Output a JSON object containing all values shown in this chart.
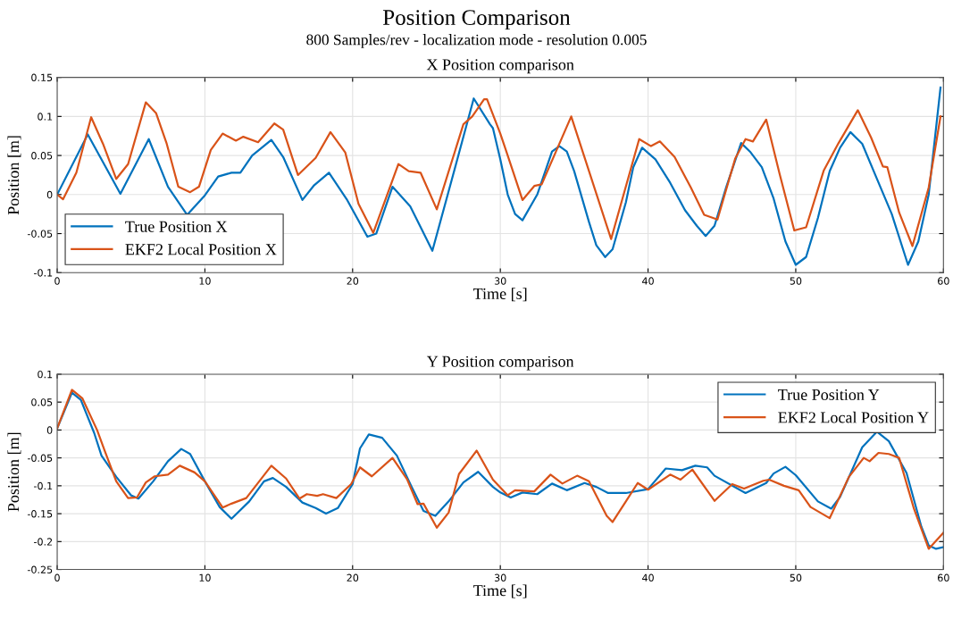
{
  "chart_data": [
    {
      "type": "line",
      "title": "X Position comparison",
      "xlabel": "Time [s]",
      "ylabel": "Position [m]",
      "annotations": [
        "Position Comparison",
        "800 Samples/rev - localization mode - resolution 0.005"
      ],
      "xlim": [
        0,
        60
      ],
      "xticks": [
        0,
        10,
        20,
        30,
        40,
        50,
        60
      ],
      "ylim": [
        -0.1,
        0.15
      ],
      "yticks": [
        -0.1,
        -0.05,
        0,
        0.05,
        0.1,
        0.15
      ],
      "grid": true,
      "legend": "bottom left",
      "line_style": "solid",
      "marker": "none",
      "series": [
        {
          "name": "True Position X",
          "color": "#0072bd",
          "x": [
            0,
            2.07,
            4.28,
            6.2,
            7.5,
            8.8,
            10,
            10.9,
            11.8,
            12.4,
            13.2,
            14.5,
            15.3,
            16.6,
            17.4,
            18.4,
            19.6,
            21.0,
            21.6,
            22.7,
            23.9,
            25.4,
            26.7,
            28.2,
            29.3,
            29.5,
            30,
            30.5,
            31,
            31.5,
            32.5,
            33.5,
            34,
            34.5,
            35,
            36,
            36.5,
            37.1,
            37.6,
            38.5,
            39,
            39.6,
            40.5,
            41.5,
            42.5,
            43.3,
            43.9,
            44.5,
            45.3,
            46.3,
            46.9,
            47.7,
            48.5,
            49.3,
            50,
            50.7,
            51.5,
            52.3,
            53,
            53.7,
            54.5,
            55.5,
            56.5,
            57.6,
            58.3,
            59,
            59.8
          ],
          "values": [
            0,
            0.077,
            0.001,
            0.071,
            0.01,
            -0.026,
            -0.001,
            0.023,
            0.028,
            0.028,
            0.05,
            0.07,
            0.048,
            -0.007,
            0.012,
            0.028,
            -0.006,
            -0.054,
            -0.05,
            0.01,
            -0.015,
            -0.072,
            0.018,
            0.123,
            0.09,
            0.085,
            0.045,
            0.0,
            -0.025,
            -0.033,
            0.0,
            0.055,
            0.062,
            0.055,
            0.03,
            -0.035,
            -0.065,
            -0.08,
            -0.07,
            -0.01,
            0.035,
            0.06,
            0.045,
            0.015,
            -0.02,
            -0.04,
            -0.053,
            -0.04,
            0.01,
            0.066,
            0.055,
            0.035,
            -0.005,
            -0.06,
            -0.09,
            -0.08,
            -0.03,
            0.03,
            0.06,
            0.08,
            0.065,
            0.02,
            -0.025,
            -0.09,
            -0.06,
            0.0,
            0.137
          ]
        },
        {
          "name": "EKF2 Local Position X",
          "color": "#d95319",
          "x": [
            0,
            0.4,
            1.3,
            2.3,
            3.1,
            4.0,
            4.8,
            6.0,
            6.7,
            7.4,
            8.2,
            9.0,
            9.6,
            10.4,
            11.2,
            12.1,
            12.6,
            13.6,
            14.7,
            15.3,
            16.3,
            17.5,
            18.5,
            19.5,
            20.4,
            21.4,
            23.1,
            23.8,
            24.6,
            25.7,
            27.5,
            28.1,
            28.9,
            29.1,
            30,
            30.5,
            31.5,
            32.3,
            32.8,
            34.8,
            37.5,
            39.4,
            40.2,
            40.8,
            41.8,
            42.9,
            43.8,
            44.7,
            45.9,
            46.6,
            47.1,
            48,
            48.9,
            49.9,
            50.7,
            51.9,
            52.9,
            54.2,
            55.1,
            55.9,
            56.2,
            57,
            57.9,
            59,
            59.8
          ],
          "values": [
            0,
            -0.006,
            0.028,
            0.099,
            0.065,
            0.02,
            0.039,
            0.118,
            0.104,
            0.066,
            0.01,
            0.003,
            0.01,
            0.057,
            0.078,
            0.069,
            0.074,
            0.067,
            0.091,
            0.083,
            0.025,
            0.047,
            0.08,
            0.054,
            -0.012,
            -0.049,
            0.039,
            0.03,
            0.028,
            -0.019,
            0.09,
            0.1,
            0.122,
            0.122,
            0.078,
            0.05,
            -0.007,
            0.011,
            0.013,
            0.1,
            -0.057,
            0.071,
            0.062,
            0.068,
            0.048,
            0.009,
            -0.026,
            -0.032,
            0.046,
            0.071,
            0.068,
            0.096,
            0.027,
            -0.046,
            -0.042,
            0.031,
            0.066,
            0.108,
            0.073,
            0.036,
            0.035,
            -0.023,
            -0.066,
            0.009,
            0.1
          ]
        }
      ]
    },
    {
      "type": "line",
      "title": "Y Position comparison",
      "xlabel": "Time [s]",
      "ylabel": "Position [m]",
      "xlim": [
        0,
        60
      ],
      "xticks": [
        0,
        10,
        20,
        30,
        40,
        50,
        60
      ],
      "ylim": [
        -0.25,
        0.1
      ],
      "yticks": [
        -0.25,
        -0.2,
        -0.15,
        -0.1,
        -0.05,
        0,
        0.05,
        0.1
      ],
      "grid": true,
      "legend": "top right",
      "line_style": "solid",
      "marker": "none",
      "series": [
        {
          "name": "True Position Y",
          "color": "#0072bd",
          "x": [
            0,
            1,
            1.6,
            2.5,
            3,
            4,
            5,
            5.5,
            6.5,
            7.5,
            8.4,
            9,
            10,
            11,
            11.8,
            13,
            14,
            14.6,
            15.5,
            16.6,
            17.5,
            18.2,
            19,
            20,
            20.5,
            21.1,
            22,
            23,
            24,
            24.8,
            25.6,
            26.5,
            27.5,
            28.5,
            29.5,
            30,
            30.7,
            31.5,
            32.5,
            33.5,
            34.5,
            35.7,
            36.5,
            37.3,
            38.5,
            40,
            41.2,
            42.3,
            43.2,
            44,
            44.5,
            46.6,
            48,
            48.5,
            49.3,
            50,
            51.5,
            52.4,
            53,
            54.5,
            55.5,
            56.3,
            57.5,
            58.5,
            59,
            59.5,
            60
          ],
          "values": [
            0.003,
            0.067,
            0.054,
            -0.005,
            -0.046,
            -0.084,
            -0.117,
            -0.123,
            -0.092,
            -0.056,
            -0.034,
            -0.043,
            -0.092,
            -0.138,
            -0.159,
            -0.128,
            -0.092,
            -0.086,
            -0.102,
            -0.13,
            -0.14,
            -0.15,
            -0.14,
            -0.097,
            -0.033,
            -0.008,
            -0.014,
            -0.046,
            -0.102,
            -0.145,
            -0.154,
            -0.128,
            -0.094,
            -0.075,
            -0.102,
            -0.112,
            -0.121,
            -0.112,
            -0.115,
            -0.096,
            -0.108,
            -0.095,
            -0.102,
            -0.113,
            -0.113,
            -0.106,
            -0.069,
            -0.072,
            -0.064,
            -0.067,
            -0.082,
            -0.113,
            -0.095,
            -0.078,
            -0.066,
            -0.081,
            -0.128,
            -0.141,
            -0.12,
            -0.031,
            -0.003,
            -0.02,
            -0.077,
            -0.173,
            -0.207,
            -0.213,
            -0.21
          ]
        },
        {
          "name": "EKF2 Local Position Y",
          "color": "#d95319",
          "x": [
            0,
            1,
            1.7,
            2.7,
            3.2,
            4,
            4.8,
            5.4,
            6,
            6.6,
            7.5,
            8.3,
            9.3,
            10,
            11.2,
            11.8,
            12.8,
            14.5,
            15.5,
            16.4,
            16.9,
            17.6,
            18.0,
            18.9,
            19.9,
            20.5,
            21.3,
            22.7,
            23.7,
            24.4,
            24.8,
            25.7,
            26.5,
            27.2,
            28.4,
            29.5,
            30.5,
            31,
            32.3,
            33.4,
            34.2,
            35.2,
            36,
            37.2,
            37.6,
            38.5,
            39.3,
            40,
            41.5,
            42.2,
            43.0,
            44.5,
            45.7,
            46.5,
            47.8,
            48.2,
            49.2,
            50.2,
            51,
            52.3,
            53.6,
            54.6,
            55,
            55.6,
            56.3,
            57,
            58,
            59,
            60
          ],
          "values": [
            0.003,
            0.072,
            0.057,
            0.0,
            -0.036,
            -0.092,
            -0.122,
            -0.121,
            -0.094,
            -0.083,
            -0.08,
            -0.064,
            -0.076,
            -0.092,
            -0.139,
            -0.132,
            -0.122,
            -0.064,
            -0.087,
            -0.123,
            -0.115,
            -0.118,
            -0.115,
            -0.122,
            -0.097,
            -0.067,
            -0.083,
            -0.05,
            -0.089,
            -0.133,
            -0.132,
            -0.175,
            -0.148,
            -0.079,
            -0.037,
            -0.089,
            -0.117,
            -0.108,
            -0.11,
            -0.08,
            -0.096,
            -0.082,
            -0.092,
            -0.154,
            -0.165,
            -0.128,
            -0.095,
            -0.107,
            -0.08,
            -0.089,
            -0.071,
            -0.127,
            -0.097,
            -0.105,
            -0.091,
            -0.089,
            -0.1,
            -0.108,
            -0.138,
            -0.158,
            -0.084,
            -0.05,
            -0.056,
            -0.041,
            -0.043,
            -0.05,
            -0.141,
            -0.213,
            -0.184
          ]
        }
      ]
    }
  ]
}
